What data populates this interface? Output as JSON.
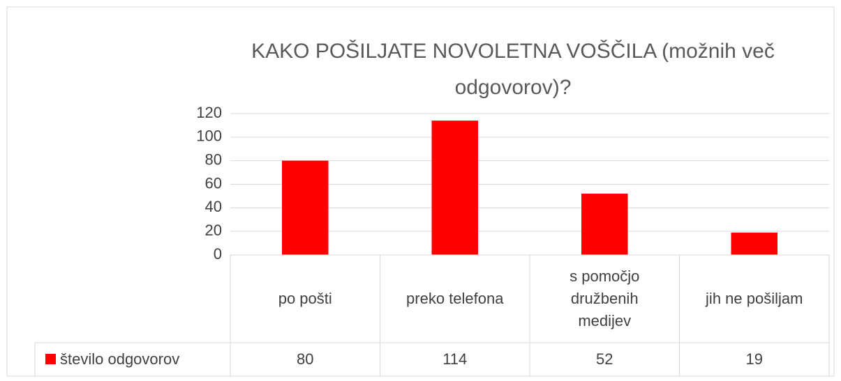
{
  "chart_data": {
    "type": "bar",
    "title": "KAKO POŠILJATE NOVOLETNA VOŠČILA (možnih več odgovorov)?",
    "categories": [
      "po pošti",
      "preko telefona",
      "s pomočjo družbenih medijev",
      "jih ne pošiljam"
    ],
    "series": [
      {
        "name": "število odgovorov",
        "color": "#ff0000",
        "values": [
          80,
          114,
          52,
          19
        ]
      }
    ],
    "ylim": [
      0,
      120
    ],
    "yticks": [
      0,
      20,
      40,
      60,
      80,
      100,
      120
    ],
    "grid": true,
    "data_table": true
  }
}
